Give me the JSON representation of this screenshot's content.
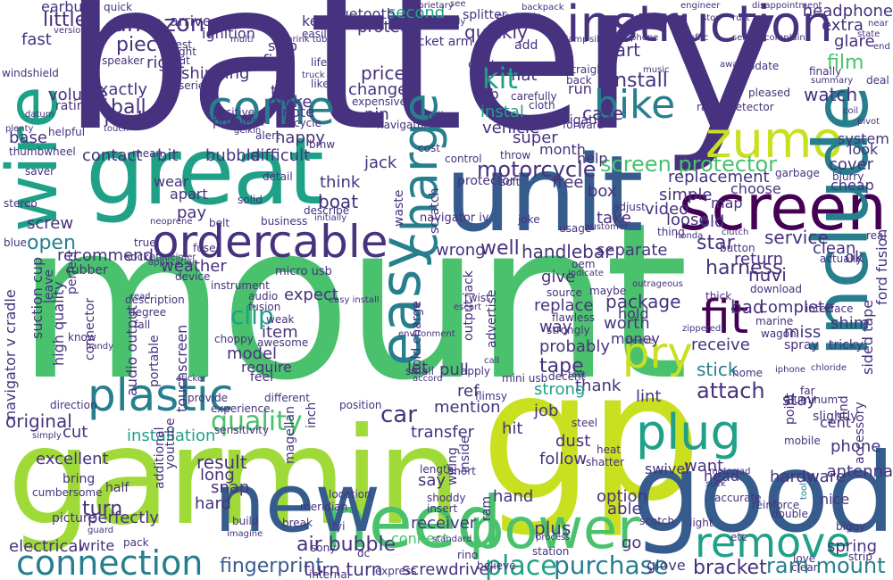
{
  "palette": {
    "background": "#ffffff",
    "c1": "#46327e",
    "c2": "#365c8d",
    "c3": "#277f8e",
    "c4": "#1fa187",
    "c5": "#4ac16d",
    "c6": "#a0da39",
    "c7": "#c8e020",
    "c8": "#440154"
  },
  "words": {
    "battery": "battery",
    "mount": "mount",
    "garmin": "garmin",
    "gp": "gp",
    "good": "good",
    "great": "great",
    "unit": "unit",
    "screen": "screen",
    "wire": "wire",
    "instruction": "instruction",
    "zumo": "zumo",
    "include": "include",
    "need": "need",
    "new": "new",
    "power": "power",
    "plug": "plug",
    "remove": "remove",
    "connection": "connection",
    "plastic": "plastic",
    "order": "order",
    "cable": "cable",
    "easy": "easy",
    "charge": "charge",
    "tool": "tool",
    "bike": "bike",
    "come": "come",
    "fit": "fit",
    "pry": "pry",
    "kit": "kit",
    "screen_protector": "screen protector",
    "motorcycle": "motorcycle",
    "quality": "quality",
    "purchase": "purchase",
    "fingerprint": "fingerprint",
    "ram_mount": "ram mount",
    "bracket": "bracket",
    "turn_turn": "turn turn",
    "screwdriver": "screwdriver",
    "place": "place",
    "air_bubble": "air bubble",
    "amazon": "amazon",
    "little": "little",
    "ball": "ball",
    "ford": "ford",
    "volume": "volume",
    "replace": "replace",
    "package": "package",
    "harness": "harness",
    "attach": "attach",
    "car": "car",
    "install": "install",
    "instal": "instal",
    "piece": "piece",
    "second": "second",
    "headphone": "headphone",
    "film": "film",
    "watch": "watch",
    "extra": "extra",
    "glare": "glare",
    "protect": "protect",
    "usb": "usb",
    "quickly": "quickly",
    "vehicle": "vehicle",
    "change": "change",
    "price": "price",
    "case": "case",
    "fine": "fine",
    "ship": "ship",
    "try": "try",
    "make": "make",
    "note": "note",
    "right": "right",
    "shipping": "shipping",
    "exactly": "exactly",
    "fast": "fast",
    "base": "base",
    "open": "open",
    "recommend": "recommend",
    "weather": "weather",
    "screw": "screw",
    "clip": "clip",
    "expect": "expect",
    "item": "item",
    "model": "model",
    "require": "require",
    "original": "original",
    "cut": "cut",
    "installation": "installation",
    "turn": "turn",
    "excellent": "excellent",
    "perfectly": "perfectly",
    "electrical": "electrical",
    "write": "write",
    "result": "result",
    "long": "long",
    "snap": "snap",
    "hard": "hard",
    "hand": "hand",
    "say": "say",
    "mention": "mention",
    "transfer": "transfer",
    "receiver": "receiver",
    "connect": "connect",
    "follow": "follow",
    "dust": "dust",
    "job": "job",
    "hit": "hit",
    "lint": "lint",
    "thank": "thank",
    "strong": "strong",
    "tape": "tape",
    "stick": "stick",
    "receive": "receive",
    "way": "way",
    "probably": "probably",
    "worth": "worth",
    "money": "money",
    "hold": "hold",
    "give": "give",
    "well": "well",
    "wrong": "wrong",
    "handlebar": "handlebar",
    "separate": "separate",
    "star": "star",
    "return": "return",
    "nuvi": "nuvi",
    "service": "service",
    "clean": "clean",
    "old": "old",
    "video": "video",
    "take": "take",
    "loose": "loose",
    "simple": "simple",
    "choose": "choose",
    "replacement": "replacement",
    "cheap": "cheap",
    "cover": "cover",
    "look": "look",
    "system": "system",
    "super": "super",
    "month": "month",
    "help": "help",
    "free": "free",
    "boat": "boat",
    "think": "think",
    "jack": "jack",
    "difficult": "difficult",
    "bubble": "bubble",
    "bit": "bit",
    "contact": "contact",
    "wear": "wear",
    "apart": "apart",
    "pay": "pay",
    "pin": "pin",
    "happy": "happy",
    "problem": "problem",
    "positive": "positive",
    "bluetooth": "bluetooth",
    "come_arrive": "arrive",
    "ignition": "ignition",
    "key": "key",
    "splitter": "splitter",
    "earbud": "earbud",
    "socket_arm": "socket arm",
    "part": "part",
    "run": "run",
    "navigation": "navigation",
    "flat": "flat",
    "antenna": "antenna",
    "phone": "phone",
    "option": "option",
    "able": "able",
    "plus": "plus",
    "hardware": "hardware",
    "head": "head",
    "want": "want",
    "swivel": "swivel",
    "ok": "ok",
    "find": "find",
    "spring": "spring",
    "glove": "glove",
    "go": "go",
    "bad": "bad",
    "complete": "complete",
    "miss": "miss",
    "shim": "shim",
    "cent": "cent",
    "nice": "nice",
    "wiring": "wiring",
    "inside": "inside",
    "ref": "ref",
    "pull": "pull",
    "let": "let",
    "point": "point",
    "stay": "stay",
    "easy_install": "easy install",
    "hold_charge": "hold charge",
    "output_jack": "output jack",
    "advertise": "advertise",
    "navigator_v_cradle": "navigator v cradle",
    "suction_cup": "suction cup",
    "leave": "leave",
    "high_quality": "high quality",
    "perfect": "perfect",
    "connector": "connector",
    "lock": "lock",
    "audio_output": "audio output",
    "portable": "portable",
    "touchscreen": "touchscreen",
    "install_2": "install",
    "sided_tape": "sided tape",
    "ford_fusion": "ford fusion",
    "accessory": "accessory",
    "double_sided": "double sided",
    "etc": "etc",
    "youtube": "youtube",
    "additional": "additional",
    "magellan": "magellan",
    "inch": "inch",
    "waste": "waste",
    "scratch": "scratch",
    "micro_usb": "micro usb",
    "navigator_iv": "navigator iv",
    "protector": "protector",
    "map": "map",
    "box": "box",
    "audio": "audio",
    "fusion": "fusion",
    "weak": "weak",
    "awesome": "awesome",
    "feel": "feel",
    "provide": "provide",
    "different": "different",
    "break": "break",
    "wiring_2": "wiring",
    "short": "short",
    "length": "length",
    "drive": "drive",
    "guess": "guess",
    "stock": "stock",
    "steel": "steel",
    "dc": "dc",
    "fyi": "fyi",
    "sony": "sony",
    "half": "half",
    "bring": "bring",
    "picture": "picture",
    "pack": "pack",
    "build": "build",
    "location": "location",
    "meridian": "meridian",
    "shoddy": "shoddy",
    "insert": "insert",
    "internal": "internal",
    "ram": "ram",
    "interface": "interface",
    "mobile": "mobile",
    "slightly": "slightly",
    "ram_2": "ram",
    "heat": "heat",
    "shatter": "shatter",
    "tricky": "tricky",
    "spray": "spray",
    "far": "far",
    "aluminum": "aluminum",
    "marine": "marine",
    "wagon": "wagon",
    "thick": "thick",
    "maybe": "maybe",
    "source": "source",
    "flawless": "flawless",
    "strongly": "strongly",
    "decent": "decent",
    "flimsy": "flimsy",
    "manual": "manual",
    "mini_usb": "mini usb",
    "text": "text",
    "download": "download",
    "button": "button",
    "actually": "actually",
    "real": "real",
    "sleeve": "sleeve",
    "usage": "usage",
    "adjust": "adjust",
    "customer": "customer",
    "thing": "thing",
    "honda": "honda",
    "clutch": "clutch",
    "garbage": "garbage",
    "blurry": "blurry",
    "deal": "deal",
    "finally": "finally",
    "update": "update",
    "pleased": "pleased",
    "radar_detector": "radar detector",
    "straight": "straight",
    "back": "back",
    "forward": "forward",
    "cloth": "cloth",
    "carefully": "carefully",
    "add": "add",
    "create": "create",
    "throw": "throw",
    "control": "control",
    "soft": "soft",
    "cost": "cost",
    "tell": "tell",
    "expensive": "expensive",
    "navigator": "navigator",
    "likely": "likely",
    "easily": "easily",
    "life": "life",
    "shrink_tubing": "shrink tubing",
    "bicycle": "bicycle",
    "alert": "alert",
    "bmw": "bmw",
    "describe": "describe",
    "initially": "initially",
    "detail": "detail",
    "solid": "solid",
    "business": "business",
    "instrument": "instrument",
    "device": "device",
    "rubber": "rubber",
    "blue": "blue",
    "stereo": "stereo",
    "saver": "saver",
    "thumbwheel": "thumbwheel",
    "helpful": "helpful",
    "rating": "rating",
    "windshield": "windshield",
    "especially": "especially",
    "quick": "quick",
    "trip": "trip",
    "speaker": "speaker",
    "rest": "rest",
    "input": "input",
    "series": "series",
    "mean": "mean",
    "description": "description",
    "application": "application",
    "degree": "degree",
    "read": "read",
    "fall": "fall",
    "know": "know",
    "position": "position",
    "environment": "environment",
    "twist": "twist",
    "escort": "escort",
    "joke": "joke",
    "oem": "oem",
    "indicate": "indicate",
    "outrageous": "outrageous",
    "zippered": "zippered",
    "home": "home",
    "chloride": "chloride",
    "iphone": "iphone",
    "station": "station",
    "express": "express",
    "rino": "rino",
    "standard": "standard",
    "believe": "believe",
    "process": "process",
    "scotch": "scotch",
    "motorrad": "motorrad",
    "suck": "suck",
    "accurate": "accurate",
    "reinforce": "reinforce",
    "light": "light",
    "double": "double",
    "love": "love",
    "clear": "clear",
    "strip": "strip",
    "biggy": "biggy",
    "sensitivity": "sensitivity",
    "direction": "direction",
    "simply": "simply",
    "cumbersome": "cumbersome",
    "guard": "guard",
    "imagine": "imagine",
    "small": "small",
    "apply": "apply",
    "call": "call",
    "accord": "accord",
    "choppy": "choppy",
    "experience": "experience",
    "sticker": "sticker",
    "handy": "handy",
    "belt": "belt",
    "tight": "tight",
    "fuse": "fuse",
    "true": "true",
    "socket": "socket",
    "neoprene": "neoprene",
    "adeimer": "adeimer",
    "truck": "truck",
    "proprietary": "proprietary",
    "see": "see",
    "backpack": "backpack",
    "electronic": "electronic",
    "directly": "directly",
    "multi": "multi",
    "silicone": "silicone",
    "microphone": "microphone",
    "clamp": "clamp",
    "music": "music",
    "away": "away",
    "sell": "sell",
    "complain": "complain",
    "stop": "stop",
    "rust": "rust",
    "engineer": "engineer",
    "disappointment": "disappointment",
    "traffic": "traffic",
    "summary": "summary",
    "near": "near",
    "state": "state",
    "end": "end",
    "pivot": "pivot",
    "coil": "coil",
    "touch": "touch",
    "gelkin": "gelkin",
    "plenty": "plenty",
    "datum": "datum",
    "version": "version",
    "plug_2": "plug",
    "charge_2": "charge"
  }
}
